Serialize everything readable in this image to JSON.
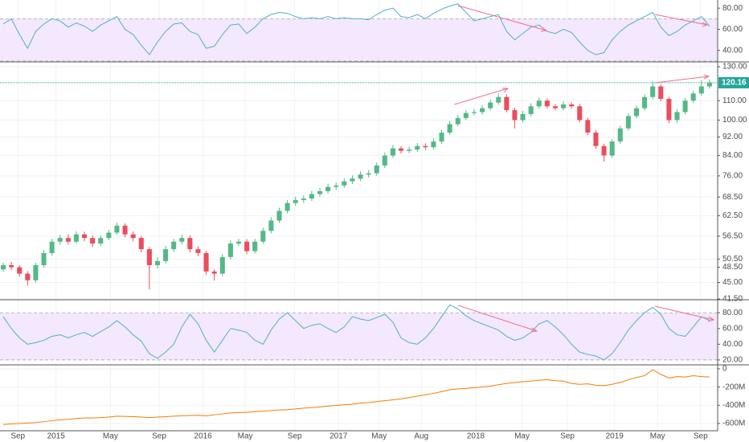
{
  "chart_data": [
    {
      "type": "line",
      "color": "#4fb0c6",
      "grid": true,
      "band": [
        30,
        70
      ],
      "band_color": "#f3e8fd",
      "ylim": [
        29.2,
        87.7
      ],
      "yticks": [
        {
          "value": 80,
          "label": "80.00"
        },
        {
          "value": 60,
          "label": "60.00"
        },
        {
          "value": 40,
          "label": "40.00"
        }
      ],
      "values": [
        65,
        70,
        55,
        42,
        58,
        65,
        70,
        68,
        62,
        66,
        63,
        58,
        64,
        68,
        72,
        60,
        55,
        45,
        36,
        48,
        58,
        65,
        66,
        58,
        55,
        42,
        44,
        55,
        64,
        65,
        56,
        62,
        70,
        74,
        76,
        75,
        72,
        70,
        71,
        70,
        72,
        70,
        71,
        70,
        70,
        69,
        74,
        78,
        80,
        72,
        71,
        74,
        70,
        75,
        79,
        82,
        84,
        76,
        68,
        70,
        72,
        74,
        58,
        50,
        56,
        62,
        64,
        58,
        56,
        60,
        57,
        48,
        40,
        36,
        38,
        50,
        58,
        64,
        68,
        72,
        76,
        62,
        54,
        58,
        64,
        68,
        72,
        63
      ]
    },
    {
      "type": "candlestick",
      "log_scale": true,
      "grid": true,
      "up_color": "#53b987",
      "down_color": "#eb4d5c",
      "last_price_color": "#26a69a",
      "ylim": [
        41.5,
        132.6
      ],
      "yticks": [
        {
          "value": 130,
          "label": "130.00"
        },
        {
          "value": 110,
          "label": "110.00"
        },
        {
          "value": 100,
          "label": "100.00"
        },
        {
          "value": 92,
          "label": "92.00"
        },
        {
          "value": 84,
          "label": "84.00"
        },
        {
          "value": 76,
          "label": "76.00"
        },
        {
          "value": 68.5,
          "label": "68.50"
        },
        {
          "value": 62.5,
          "label": "62.50"
        },
        {
          "value": 56.5,
          "label": "56.50"
        },
        {
          "value": 50.5,
          "label": "50.50"
        },
        {
          "value": 48.5,
          "label": "48.50"
        },
        {
          "value": 45,
          "label": "45.00"
        },
        {
          "value": 41.5,
          "label": "41.50"
        }
      ],
      "open": [
        48,
        49,
        48.5,
        47,
        45.5,
        49,
        52,
        55,
        56,
        55,
        57,
        56,
        54.5,
        56,
        57.5,
        59.5,
        57,
        56,
        53,
        49,
        50,
        53,
        55,
        56,
        53,
        52,
        47.5,
        47,
        51,
        54.5,
        55,
        52.5,
        55,
        58,
        61,
        64,
        66.5,
        67.5,
        68,
        69.5,
        70.5,
        72,
        72.5,
        74,
        75,
        76.5,
        77,
        80,
        84,
        87,
        86,
        86.5,
        88,
        87.5,
        90,
        94,
        98,
        101,
        103.5,
        104,
        106,
        109,
        112,
        105,
        100,
        103,
        107,
        110,
        107,
        106,
        108,
        107,
        100,
        94,
        88,
        84,
        90,
        96,
        102,
        106,
        112,
        118,
        111,
        100,
        104,
        110,
        114,
        118
      ],
      "high": [
        49.6,
        49.8,
        49,
        47.6,
        49.6,
        52.8,
        55.8,
        56.9,
        57,
        57.9,
        57.8,
        56.7,
        56.8,
        58.3,
        60.4,
        60.2,
        57.8,
        56.6,
        53.6,
        51,
        53.9,
        55.8,
        56.9,
        56.7,
        53.8,
        52.6,
        48,
        51.8,
        55.3,
        55.8,
        55.7,
        55.8,
        58.9,
        62,
        65,
        67.5,
        68.6,
        69,
        70.6,
        71.6,
        73.1,
        73.6,
        75.1,
        76.2,
        77.7,
        78.2,
        81.2,
        85.3,
        88.4,
        88,
        87.8,
        89.3,
        89.2,
        91.4,
        95.4,
        99.5,
        102.5,
        105,
        105.6,
        107.6,
        110.7,
        114,
        113.5,
        106.2,
        104.6,
        108.6,
        111.7,
        111.2,
        108.2,
        109.6,
        109.2,
        108.2,
        101.2,
        95.1,
        89,
        91.1,
        97.3,
        103.4,
        107.4,
        113.5,
        121,
        119.3,
        112.2,
        105.4,
        111.5,
        115.4,
        121.5,
        122
      ],
      "low": [
        47.4,
        47.8,
        46.3,
        44.3,
        45,
        48.4,
        51.3,
        54.2,
        54.2,
        54.5,
        55.1,
        53.6,
        53.9,
        55.4,
        56.9,
        56.2,
        55.1,
        52.2,
        43.5,
        48.2,
        49.4,
        52.3,
        54.3,
        52.2,
        51.2,
        46.7,
        45.4,
        46.4,
        50.4,
        53.8,
        51.7,
        51.9,
        54.4,
        57.3,
        60.3,
        63.2,
        65.6,
        66.5,
        67.2,
        68.6,
        69.7,
        71,
        71.6,
        73,
        74.1,
        75.4,
        76.1,
        79,
        83,
        84.8,
        85,
        85.5,
        86.4,
        86.5,
        89,
        93,
        97,
        100,
        102.3,
        102.8,
        104.8,
        107.8,
        103.8,
        96,
        98.8,
        101.8,
        105.8,
        105.8,
        104.8,
        104.8,
        105.8,
        98.8,
        92.9,
        86.9,
        81.5,
        83,
        89,
        94.9,
        100.8,
        104.8,
        110.8,
        109.7,
        98.5,
        98.8,
        102.8,
        108.7,
        112.7,
        116.7
      ],
      "close": [
        49,
        48.5,
        47,
        45.5,
        49,
        52,
        55,
        56,
        55,
        57,
        56,
        54.5,
        56,
        57.5,
        59.5,
        57,
        56,
        53,
        49,
        50,
        53,
        55,
        56,
        53,
        52,
        47.5,
        47,
        51,
        54.5,
        55,
        52.5,
        55,
        58,
        61,
        64,
        66.5,
        67.5,
        68,
        69.5,
        70.5,
        72,
        72.5,
        74,
        75,
        76.5,
        77,
        80,
        84,
        87,
        86,
        86.5,
        88,
        87.5,
        90,
        94,
        98,
        101,
        103.5,
        104,
        106,
        109,
        112,
        105,
        100,
        103,
        107,
        110,
        107,
        106,
        108,
        107,
        100,
        94,
        88,
        84,
        90,
        96,
        102,
        106,
        112,
        118,
        111,
        100,
        104,
        110,
        114,
        118,
        120.16
      ]
    },
    {
      "type": "line",
      "color": "#4fb0c6",
      "grid": true,
      "band": [
        20,
        80
      ],
      "band_color": "#f3e8fd",
      "ylim": [
        14.8,
        95.5
      ],
      "yticks": [
        {
          "value": 80,
          "label": "80.00"
        },
        {
          "value": 60,
          "label": "60.00"
        },
        {
          "value": 40,
          "label": "40.00"
        },
        {
          "value": 20,
          "label": "20.00"
        }
      ],
      "values": [
        75,
        60,
        48,
        40,
        42,
        45,
        50,
        52,
        48,
        52,
        55,
        50,
        56,
        62,
        70,
        62,
        52,
        44,
        28,
        22,
        30,
        40,
        62,
        78,
        66,
        45,
        30,
        45,
        60,
        58,
        55,
        45,
        40,
        58,
        72,
        80,
        70,
        60,
        64,
        66,
        60,
        55,
        62,
        75,
        72,
        70,
        74,
        78,
        68,
        48,
        42,
        40,
        48,
        60,
        75,
        90,
        85,
        76,
        70,
        66,
        62,
        58,
        50,
        45,
        48,
        55,
        66,
        70,
        62,
        52,
        40,
        30,
        27,
        25,
        20,
        28,
        42,
        58,
        70,
        80,
        87,
        78,
        60,
        52,
        50,
        62,
        75,
        70
      ]
    },
    {
      "type": "line",
      "color": "#f57c00",
      "grid": true,
      "ylim": [
        -671000000.0,
        35000000.0
      ],
      "yticks": [
        0,
        {
          "value": -200000000.0,
          "label": "-200M"
        },
        {
          "value": -400000000.0,
          "label": "-400M"
        },
        {
          "value": -600000000.0,
          "label": "-600M"
        }
      ],
      "xlim": [
        -0.4,
        88
      ],
      "xticks": [
        {
          "value": 1.8,
          "label": "Sep"
        },
        {
          "value": 6.5,
          "label": "2015"
        },
        {
          "value": 13.2,
          "label": "May"
        },
        {
          "value": 19.2,
          "label": "Sep"
        },
        {
          "value": 24.6,
          "label": "2016"
        },
        {
          "value": 29.8,
          "label": "May"
        },
        {
          "value": 35.9,
          "label": "Sep"
        },
        {
          "value": 41.3,
          "label": "2017"
        },
        {
          "value": 46.3,
          "label": "May"
        },
        {
          "value": 51.5,
          "label": "Aug"
        },
        {
          "value": 58.2,
          "label": "2018"
        },
        {
          "value": 63.9,
          "label": "May"
        },
        {
          "value": 69.5,
          "label": "Sep"
        },
        {
          "value": 75.3,
          "label": "2019"
        },
        {
          "value": 80.6,
          "label": "May"
        },
        {
          "value": 85.9,
          "label": "Sep"
        }
      ],
      "values": [
        -610000000.0,
        -605000000.0,
        -600000000.0,
        -595000000.0,
        -590000000.0,
        -580000000.0,
        -570000000.0,
        -560000000.0,
        -555000000.0,
        -545000000.0,
        -540000000.0,
        -540000000.0,
        -535000000.0,
        -530000000.0,
        -520000000.0,
        -522000000.0,
        -525000000.0,
        -530000000.0,
        -535000000.0,
        -530000000.0,
        -525000000.0,
        -520000000.0,
        -515000000.0,
        -512000000.0,
        -510000000.0,
        -515000000.0,
        -505000000.0,
        -495000000.0,
        -485000000.0,
        -480000000.0,
        -478000000.0,
        -470000000.0,
        -465000000.0,
        -458000000.0,
        -452000000.0,
        -448000000.0,
        -440000000.0,
        -432000000.0,
        -425000000.0,
        -418000000.0,
        -410000000.0,
        -402000000.0,
        -395000000.0,
        -388000000.0,
        -378000000.0,
        -370000000.0,
        -360000000.0,
        -350000000.0,
        -340000000.0,
        -330000000.0,
        -315000000.0,
        -300000000.0,
        -285000000.0,
        -270000000.0,
        -250000000.0,
        -230000000.0,
        -220000000.0,
        -215000000.0,
        -205000000.0,
        -200000000.0,
        -190000000.0,
        -175000000.0,
        -160000000.0,
        -150000000.0,
        -140000000.0,
        -135000000.0,
        -125000000.0,
        -120000000.0,
        -130000000.0,
        -135000000.0,
        -160000000.0,
        -170000000.0,
        -165000000.0,
        -180000000.0,
        -185000000.0,
        -170000000.0,
        -150000000.0,
        -120000000.0,
        -95000000.0,
        -75000000.0,
        -10000000.0,
        -60000000.0,
        -100000000.0,
        -85000000.0,
        -90000000.0,
        -75000000.0,
        -85000000.0,
        -90000000.0
      ]
    }
  ]
}
